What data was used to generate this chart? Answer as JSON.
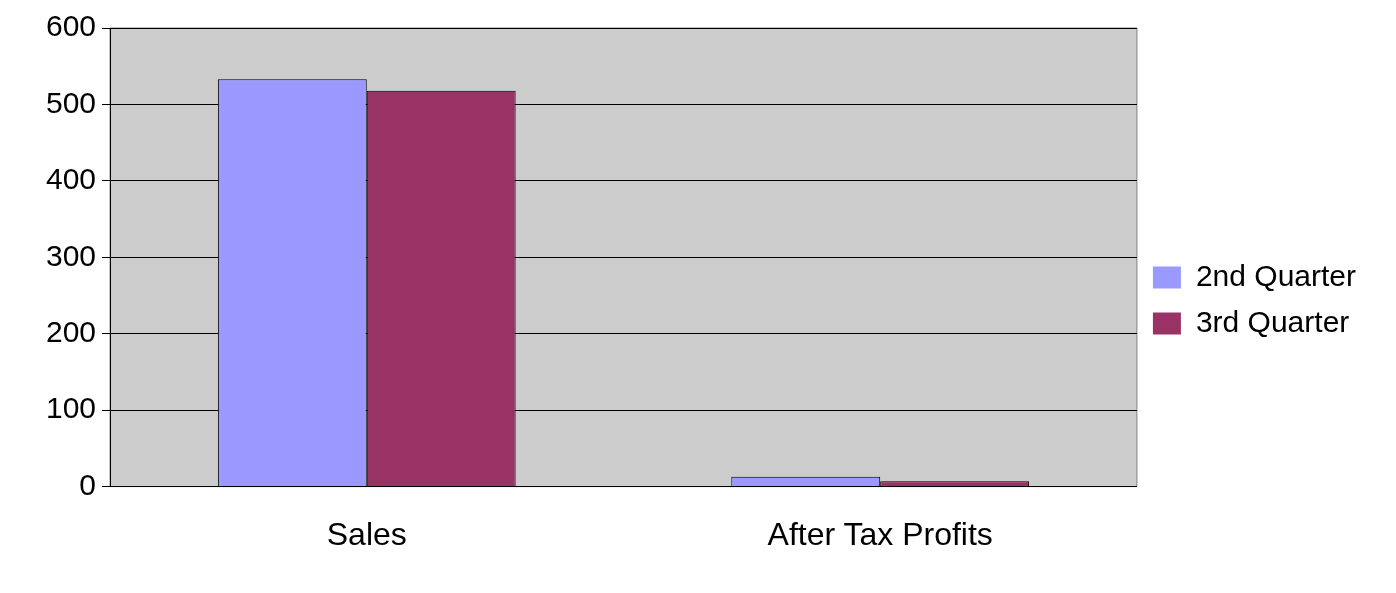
{
  "chart_data": {
    "type": "bar",
    "categories": [
      "Sales",
      "After Tax Profits"
    ],
    "series": [
      {
        "name": "2nd Quarter",
        "color": "#9999ff",
        "values": [
          533,
          13
        ]
      },
      {
        "name": "3rd Quarter",
        "color": "#993366",
        "values": [
          518,
          7
        ]
      }
    ],
    "ylim": [
      0,
      600
    ],
    "yticks": [
      0,
      100,
      200,
      300,
      400,
      500,
      600
    ],
    "grid": "y",
    "legend": "right"
  }
}
